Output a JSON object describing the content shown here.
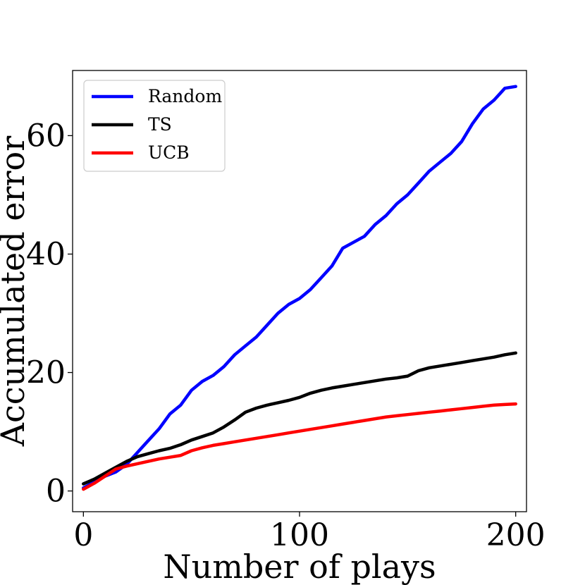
{
  "chart_data": {
    "type": "line",
    "title": "",
    "xlabel": "Number of plays",
    "ylabel": "Accumulated error",
    "xlim": [
      -5,
      205
    ],
    "ylim": [
      -3.5,
      71
    ],
    "xticks": [
      0,
      100,
      200
    ],
    "xtick_labels": [
      "0",
      "100",
      "200"
    ],
    "yticks": [
      0,
      20,
      40,
      60
    ],
    "ytick_labels": [
      "0",
      "20",
      "40",
      "60"
    ],
    "grid": false,
    "legend_position": "top-left",
    "series": [
      {
        "name": "Random",
        "color": "#0000ff",
        "x": [
          0,
          5,
          10,
          15,
          20,
          25,
          30,
          35,
          40,
          45,
          50,
          55,
          60,
          65,
          70,
          75,
          80,
          85,
          90,
          95,
          100,
          105,
          110,
          115,
          120,
          125,
          130,
          135,
          140,
          145,
          150,
          155,
          160,
          165,
          170,
          175,
          180,
          185,
          190,
          195,
          200
        ],
        "values": [
          0.5,
          1.5,
          2.5,
          3.2,
          4.5,
          6.5,
          8.5,
          10.5,
          13.0,
          14.5,
          17.0,
          18.5,
          19.5,
          21.0,
          23.0,
          24.5,
          26.0,
          28.0,
          30.0,
          31.5,
          32.5,
          34.0,
          36.0,
          38.0,
          41.0,
          42.0,
          43.0,
          45.0,
          46.5,
          48.5,
          50.0,
          52.0,
          54.0,
          55.5,
          57.0,
          59.0,
          62.0,
          64.5,
          66.0,
          68.0,
          68.3
        ]
      },
      {
        "name": "TS",
        "color": "#000000",
        "x": [
          0,
          5,
          10,
          15,
          20,
          25,
          30,
          35,
          40,
          45,
          50,
          55,
          60,
          65,
          70,
          75,
          80,
          85,
          90,
          95,
          100,
          105,
          110,
          115,
          120,
          125,
          130,
          135,
          140,
          145,
          150,
          155,
          160,
          165,
          170,
          175,
          180,
          185,
          190,
          195,
          200
        ],
        "values": [
          1.2,
          2.0,
          3.0,
          4.0,
          5.0,
          5.8,
          6.3,
          6.8,
          7.2,
          7.8,
          8.6,
          9.2,
          9.8,
          10.8,
          12.0,
          13.3,
          14.0,
          14.5,
          14.9,
          15.3,
          15.8,
          16.5,
          17.0,
          17.4,
          17.7,
          18.0,
          18.3,
          18.6,
          18.9,
          19.1,
          19.4,
          20.3,
          20.8,
          21.1,
          21.4,
          21.7,
          22.0,
          22.3,
          22.6,
          23.0,
          23.3
        ]
      },
      {
        "name": "UCB",
        "color": "#ff0000",
        "x": [
          0,
          5,
          10,
          15,
          20,
          25,
          30,
          35,
          40,
          45,
          50,
          55,
          60,
          65,
          70,
          75,
          80,
          85,
          90,
          95,
          100,
          105,
          110,
          115,
          120,
          125,
          130,
          135,
          140,
          145,
          150,
          155,
          160,
          165,
          170,
          175,
          180,
          185,
          190,
          195,
          200
        ],
        "values": [
          0.3,
          1.3,
          2.5,
          3.7,
          4.2,
          4.6,
          5.0,
          5.4,
          5.7,
          6.0,
          6.8,
          7.3,
          7.7,
          8.0,
          8.3,
          8.6,
          8.9,
          9.2,
          9.5,
          9.8,
          10.1,
          10.4,
          10.7,
          11.0,
          11.3,
          11.6,
          11.9,
          12.2,
          12.5,
          12.7,
          12.9,
          13.1,
          13.3,
          13.5,
          13.7,
          13.9,
          14.1,
          14.3,
          14.5,
          14.6,
          14.7
        ]
      }
    ]
  }
}
